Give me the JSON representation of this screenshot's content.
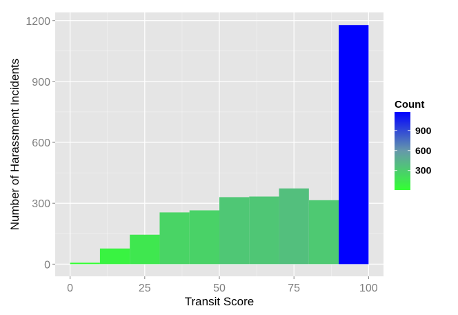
{
  "chart_data": {
    "type": "bar",
    "subtype": "histogram",
    "bin_width": 10,
    "x": [
      5,
      15,
      25,
      35,
      45,
      55,
      65,
      75,
      85,
      95
    ],
    "values": [
      7,
      77,
      145,
      255,
      265,
      330,
      333,
      373,
      315,
      1178
    ],
    "xlabel": "Transit Score",
    "ylabel": "Number of Harassment Incidents",
    "xlim": [
      -5,
      105
    ],
    "ylim": [
      -60,
      1240
    ],
    "x_ticks": [
      "0",
      "25",
      "50",
      "75",
      "100"
    ],
    "y_ticks": [
      "0",
      "300",
      "600",
      "900",
      "1200"
    ],
    "grid": true,
    "legend": {
      "title": "Count",
      "placement": "right",
      "type": "colorbar",
      "ticks": [
        "300",
        "600",
        "900"
      ],
      "range": [
        7,
        1178
      ],
      "low_color": "#33ff33",
      "mid_color": "#6699aa",
      "high_color": "#0000ff"
    },
    "panel_color": "#e5e5e5",
    "grid_color": "#ffffff"
  }
}
